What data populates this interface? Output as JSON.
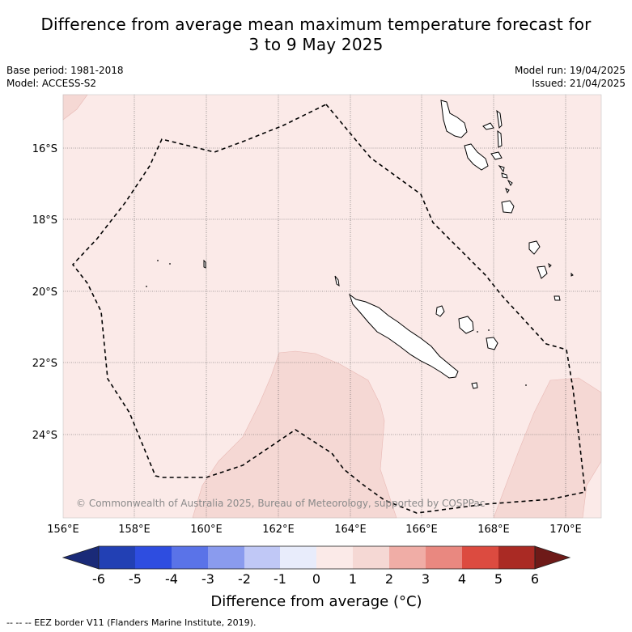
{
  "title_line1": "Difference from average mean maximum temperature forecast for",
  "title_line2": "3 to 9 May 2025",
  "base_period": "Base period: 1981-2018",
  "model": "Model: ACCESS-S2",
  "model_run": "Model run: 19/04/2025",
  "issued": "Issued: 21/04/2025",
  "copyright": "© Commonwealth of Australia 2025, Bureau of Meteorology, supported by COSPPac",
  "footnote": "-- -- -- EEZ border V11 (Flanders Marine Institute, 2019).",
  "lon_labels": [
    "156°E",
    "158°E",
    "160°E",
    "162°E",
    "164°E",
    "166°E",
    "168°E",
    "170°E"
  ],
  "lat_labels": [
    "16°S",
    "18°S",
    "20°S",
    "22°S",
    "24°S"
  ],
  "colorbar": {
    "title": "Difference from average (°C)",
    "ticks": [
      "-6",
      "-5",
      "-4",
      "-3",
      "-2",
      "-1",
      "0",
      "1",
      "2",
      "3",
      "4",
      "5",
      "6"
    ],
    "colors": [
      "#1a2a78",
      "#2240b4",
      "#2e4de0",
      "#5a73e8",
      "#8a9bee",
      "#c0c8f6",
      "#e8ecfb",
      "#fbeae8",
      "#f5d8d4",
      "#f0ada6",
      "#e98880",
      "#dc4b40",
      "#aa2a24",
      "#6e1a18"
    ]
  },
  "colors": {
    "background_anomaly": "#fbeae8",
    "warm_anomaly": "#f5d8d4",
    "grid": "#555555",
    "eez": "#000000"
  }
}
